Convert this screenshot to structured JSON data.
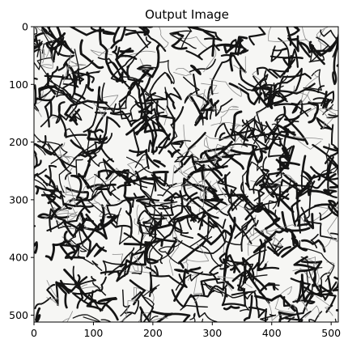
{
  "chart_data": {
    "type": "heatmap",
    "title": "Output Image",
    "xlabel": "",
    "ylabel": "",
    "image_size": [
      512,
      512
    ],
    "xlim": [
      0,
      512
    ],
    "ylim": [
      512,
      0
    ],
    "xticks": [
      0,
      100,
      200,
      300,
      400,
      500
    ],
    "yticks": [
      0,
      100,
      200,
      300,
      400,
      500
    ],
    "content": "black-and-white abstract sketch texture of dense ink strokes",
    "colors": {
      "ink": "#141414",
      "paper": "#f6f6f4",
      "gray": "#8a8a8a"
    }
  }
}
